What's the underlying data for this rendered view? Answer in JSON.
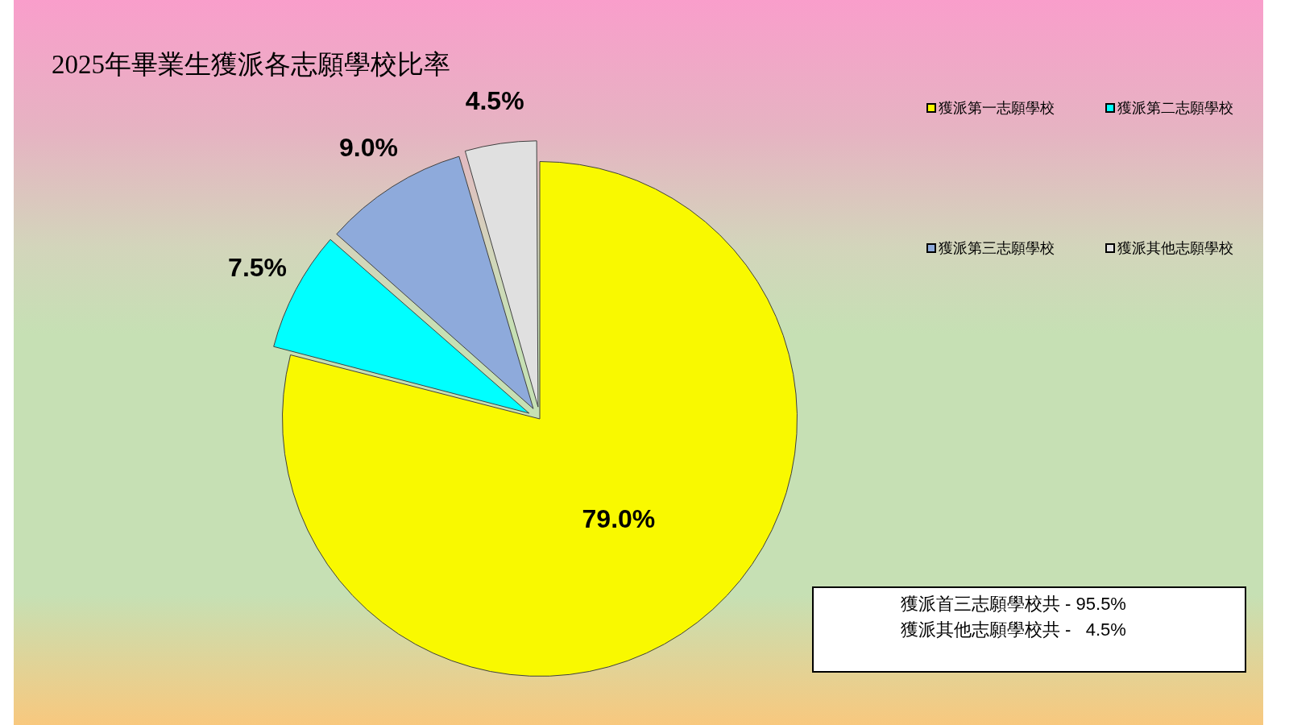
{
  "chart_data": {
    "type": "pie",
    "title": "2025年畢業生獲派各志願學校比率",
    "categories": [
      "獲派第一志願學校",
      "獲派第二志願學校",
      "獲派第三志願學校",
      "獲派其他志願學校"
    ],
    "values": [
      79.0,
      7.5,
      9.0,
      4.5
    ],
    "colors": [
      "#f9f900",
      "#00ffff",
      "#8eaadb",
      "#e0e0e0"
    ],
    "value_labels": [
      "79.0%",
      "7.5%",
      "9.0%",
      "4.5%"
    ],
    "legend": "top right",
    "annotations": [
      "獲派首三志願學校共 - 95.5%",
      "獲派其他志願學校共 -   4.5%"
    ]
  }
}
